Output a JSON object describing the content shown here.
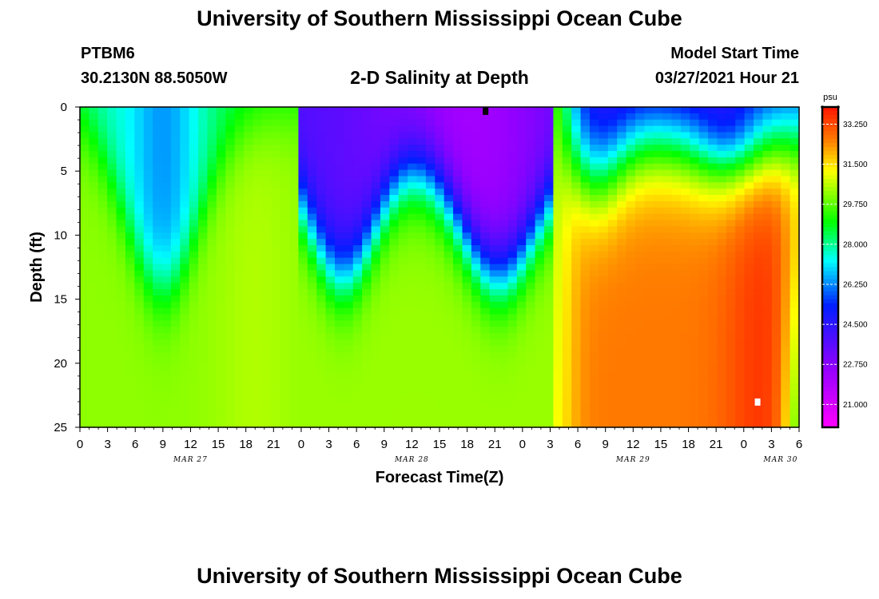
{
  "header": {
    "title": "University of Southern Mississippi Ocean Cube",
    "station": "PTBM6",
    "coords": "30.2130N  88.5050W",
    "subtitle": "2-D Salinity at Depth",
    "model_start_label": "Model Start Time",
    "model_start_value": "03/27/2021 Hour 21"
  },
  "footer": {
    "title": "University of Southern Mississippi Ocean Cube"
  },
  "chart_data": {
    "type": "heatmap",
    "title": "2-D Salinity at Depth",
    "xlabel": "Forecast Time(Z)",
    "ylabel": "Depth (ft)",
    "xlim": [
      0,
      78
    ],
    "ylim": [
      0,
      25
    ],
    "x_tick_labels": [
      "0",
      "3",
      "6",
      "9",
      "12",
      "15",
      "18",
      "21",
      "0",
      "3",
      "6",
      "9",
      "12",
      "15",
      "18",
      "21",
      "0",
      "3",
      "6",
      "9",
      "12",
      "15",
      "18",
      "21",
      "0",
      "3",
      "6"
    ],
    "y_ticks": [
      0,
      5,
      10,
      15,
      20,
      25
    ],
    "date_labels": [
      {
        "label": "MAR 27",
        "hour": 12
      },
      {
        "label": "MAR 28",
        "hour": 36
      },
      {
        "label": "MAR 29",
        "hour": 60
      },
      {
        "label": "MAR 30",
        "hour": 76
      }
    ],
    "colorbar": {
      "unit": "psu",
      "min": 20.0,
      "max": 34.0,
      "tick_labels": [
        "33.250",
        "31.500",
        "29.750",
        "28.000",
        "26.250",
        "24.500",
        "22.750",
        "21.000"
      ],
      "tick_values": [
        33.25,
        31.5,
        29.75,
        28.0,
        26.25,
        24.5,
        22.75,
        21.0
      ]
    },
    "grid_cols": 79,
    "grid_rows": 51,
    "markers": [
      {
        "hour": 44.0,
        "depth": 0.3,
        "color": "#000000"
      },
      {
        "hour": 73.5,
        "depth": 23.0,
        "color": "#ffffff"
      }
    ]
  }
}
